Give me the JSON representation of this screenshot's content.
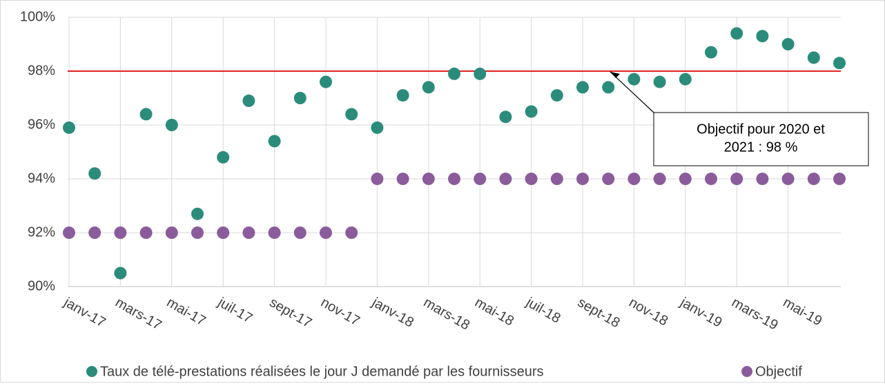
{
  "chart_data": {
    "type": "scatter",
    "categories": [
      "janv-17",
      null,
      "mars-17",
      null,
      "mai-17",
      null,
      "juil-17",
      null,
      "sept-17",
      null,
      "nov-17",
      null,
      "janv-18",
      null,
      "mars-18",
      null,
      "mai-18",
      null,
      "juil-18",
      null,
      "sept-18",
      null,
      "nov-18",
      null,
      "janv-19",
      null,
      "mars-19",
      null,
      "mai-19",
      null,
      null
    ],
    "series": [
      {
        "name": "Taux de télé-prestations réalisées le jour J demandé par les fournisseurs",
        "color": "#2b8c7b",
        "values": [
          95.9,
          94.2,
          90.5,
          96.4,
          96.0,
          92.7,
          94.8,
          96.9,
          95.4,
          97.0,
          97.6,
          96.4,
          95.9,
          97.1,
          97.4,
          97.9,
          97.9,
          96.3,
          96.5,
          97.1,
          97.4,
          97.4,
          97.7,
          97.6,
          97.7,
          98.7,
          99.4,
          99.3,
          99.0,
          98.5,
          98.3
        ]
      },
      {
        "name": "Objectif",
        "color": "#8b5c9c",
        "values": [
          92,
          92,
          92,
          92,
          92,
          92,
          92,
          92,
          92,
          92,
          92,
          92,
          94,
          94,
          94,
          94,
          94,
          94,
          94,
          94,
          94,
          94,
          94,
          94,
          94,
          94,
          94,
          94,
          94,
          94,
          94
        ]
      }
    ],
    "ylim": [
      90,
      100
    ],
    "yticks": [
      {
        "value": 90,
        "label": "90%"
      },
      {
        "value": 92,
        "label": "92%"
      },
      {
        "value": 94,
        "label": "94%"
      },
      {
        "value": 96,
        "label": "96%"
      },
      {
        "value": 98,
        "label": "98%"
      },
      {
        "value": 100,
        "label": "100%"
      }
    ],
    "grid": true,
    "reference_line": {
      "value": 98,
      "color": "#e02020"
    },
    "annotation": [
      "Objectif pour 2020 et",
      "2021 : 98 %"
    ],
    "legend": "bottom"
  }
}
